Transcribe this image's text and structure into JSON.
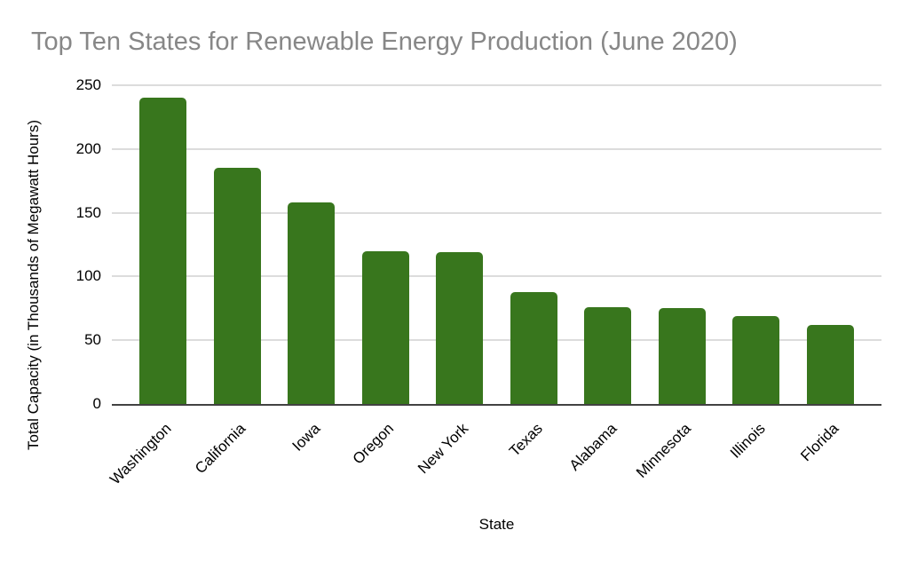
{
  "title": "Top Ten States for Renewable Energy Production (June 2020)",
  "chart_data": {
    "type": "bar",
    "categories": [
      "Washington",
      "California",
      "Iowa",
      "Oregon",
      "New York",
      "Texas",
      "Alabama",
      "Minnesota",
      "Illinois",
      "Florida"
    ],
    "values": [
      240,
      185,
      158,
      120,
      119,
      88,
      76,
      75,
      69,
      62
    ],
    "title": "Top Ten States for Renewable Energy Production (June 2020)",
    "xlabel": "State",
    "ylabel": "Total Capacity (in Thousands of Megawatt Hours)",
    "ylim": [
      0,
      250
    ],
    "yticks": [
      0,
      50,
      100,
      150,
      200,
      250
    ],
    "grid": true,
    "legend": "none"
  },
  "colors": {
    "bar": "#38761d",
    "title": "#878787",
    "gridline": "#dcdcdc",
    "axis_line": "#424242",
    "label_text": "#000000"
  }
}
